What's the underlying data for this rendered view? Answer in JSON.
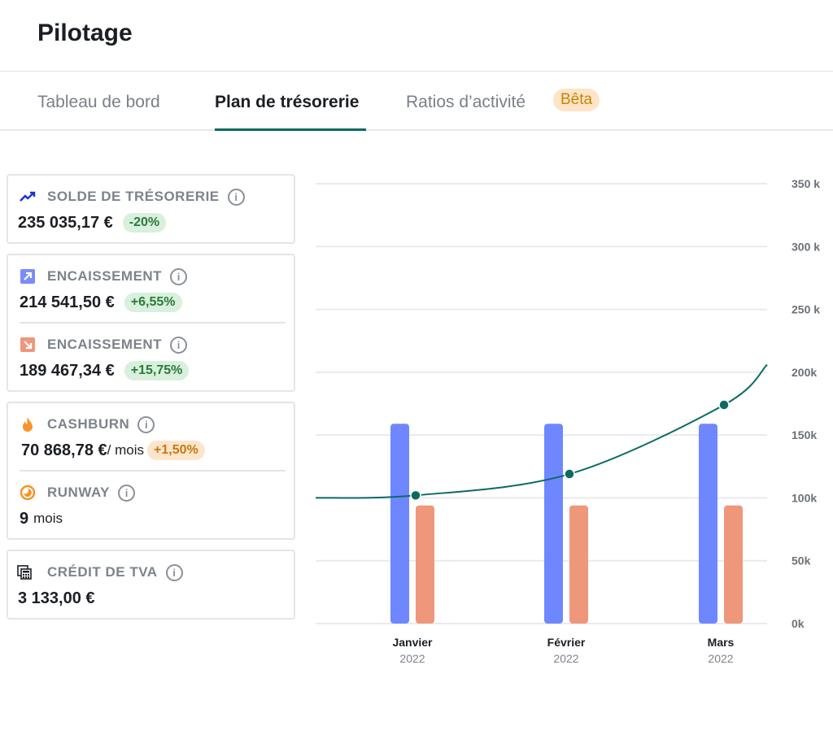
{
  "header": {
    "title": "Pilotage"
  },
  "tabs": [
    {
      "label": "Tableau de bord",
      "active": false
    },
    {
      "label": "Plan de trésorerie",
      "active": true
    },
    {
      "label": "Ratios d’activité",
      "active": false,
      "badge": "Bêta"
    }
  ],
  "metrics": {
    "solde": {
      "icon": "trending-up-icon",
      "label": "SOLDE DE TRÉSORERIE",
      "value": "235 035,17 €",
      "change": "-20%"
    },
    "encaissement_in": {
      "icon": "arrow-up-right-icon",
      "label": "ENCAISSEMENT",
      "value": "214 541,50 €",
      "change": "+6,55%"
    },
    "encaissement_out": {
      "icon": "arrow-down-right-icon",
      "label": "ENCAISSEMENT",
      "value": "189 467,34 €",
      "change": "+15,75%"
    },
    "cashburn": {
      "icon": "flame-icon",
      "label": "CASHBURN",
      "value": "70 868,78 €",
      "unit": "/ mois",
      "change": "+1,50%"
    },
    "runway": {
      "icon": "moon-clock-icon",
      "label": "RUNWAY",
      "value": "9",
      "unit": "mois"
    },
    "tva": {
      "icon": "calculator-icon",
      "label": "CRÉDIT DE TVA",
      "value": "3 133,00 €"
    }
  },
  "colors": {
    "accent": "#0b6b63",
    "inflow": "#6f87fe",
    "outflow": "#ef977b",
    "badge_green_bg": "#d8f0dc",
    "badge_orange_bg": "#fde5cc"
  },
  "chart_data": {
    "type": "bar+line",
    "categories": [
      "Janvier",
      "Février",
      "Mars"
    ],
    "category_sublabels": [
      "2022",
      "2022",
      "2022"
    ],
    "series": [
      {
        "type": "bar",
        "color": "#6f87fe",
        "values": [
          159000,
          159000,
          159000
        ]
      },
      {
        "type": "bar",
        "color": "#ef977b",
        "values": [
          94000,
          94000,
          94000
        ]
      },
      {
        "type": "line",
        "color": "#0b6b63",
        "values": [
          102000,
          119000,
          174000
        ]
      }
    ],
    "yticks": [
      0,
      50000,
      100000,
      150000,
      200000,
      250000,
      300000,
      350000
    ],
    "ytick_labels": [
      "0k",
      "50k",
      "100k",
      "150k",
      "200k",
      "250 k",
      "300 k",
      "350 k"
    ],
    "ylim": [
      0,
      350000
    ],
    "grid": true,
    "yaxis_position": "right"
  }
}
